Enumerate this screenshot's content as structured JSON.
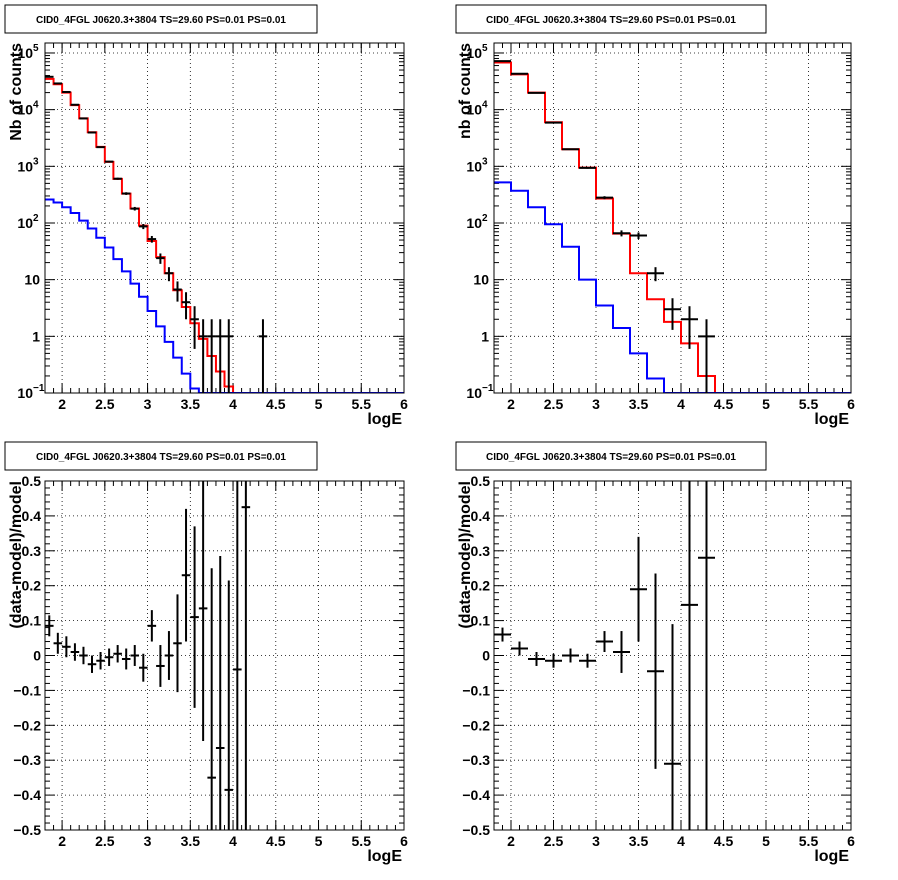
{
  "chart_data": [
    {
      "type": "line",
      "title": "CID0_4FGL J0620.3+3804 TS=29.60 PS=0.01 PS=0.01",
      "xlabel": "logE",
      "ylabel": "Nb of counts",
      "xlim": [
        1.8,
        6.0
      ],
      "ylim": [
        0.1,
        150000
      ],
      "yscale": "log",
      "grid": true,
      "xticks": [
        "2",
        "2.5",
        "3",
        "3.5",
        "4",
        "4.5",
        "5",
        "5.5",
        "6"
      ],
      "yticks": [
        {
          "value": 0.1,
          "label": "10",
          "exp": "−1"
        },
        {
          "value": 1,
          "label": "1",
          "exp": ""
        },
        {
          "value": 10,
          "label": "10",
          "exp": ""
        },
        {
          "value": 100,
          "label": "10",
          "exp": "2"
        },
        {
          "value": 1000,
          "label": "10",
          "exp": "3"
        },
        {
          "value": 10000,
          "label": "10",
          "exp": "4"
        },
        {
          "value": 100000,
          "label": "10",
          "exp": "5"
        }
      ],
      "bin_edges": [
        1.8,
        1.9,
        2.0,
        2.1,
        2.2,
        2.3,
        2.4,
        2.5,
        2.6,
        2.7,
        2.8,
        2.9,
        3.0,
        3.1,
        3.2,
        3.3,
        3.4,
        3.5,
        3.6,
        3.7,
        3.8,
        3.9,
        4.0,
        4.1,
        4.2,
        4.3,
        4.4,
        4.5,
        4.6,
        4.7,
        4.8,
        4.9,
        5.0,
        5.1,
        5.2,
        5.3,
        5.4,
        5.5,
        5.6,
        5.7,
        5.8,
        5.9,
        6.0
      ],
      "series": [
        {
          "color": "#ff0000",
          "values": [
            35000,
            28000,
            20000,
            12000,
            7000,
            4000,
            2200,
            1200,
            600,
            330,
            180,
            90,
            48,
            25,
            13,
            6.5,
            3.3,
            1.7,
            0.9,
            0.45,
            0.24,
            0.13,
            0.1,
            0.1,
            0.1,
            0.1,
            0.1,
            0.1,
            0.1,
            0.1,
            0.1,
            0.1,
            0.1,
            0.1,
            0.1,
            0.1,
            0.1,
            0.1,
            0.1,
            0.1,
            0.1,
            0.1
          ]
        },
        {
          "color": "#0000ff",
          "values": [
            260,
            230,
            190,
            150,
            110,
            80,
            55,
            37,
            23,
            14,
            8.5,
            5.0,
            2.8,
            1.5,
            0.8,
            0.42,
            0.22,
            0.12,
            0.1,
            0.1,
            0.1,
            0.1,
            0.1,
            0.1,
            0.1,
            0.1,
            0.1,
            0.1,
            0.1,
            0.1,
            0.1,
            0.1,
            0.1,
            0.1,
            0.1,
            0.1,
            0.1,
            0.1,
            0.1,
            0.1,
            0.1,
            0.1
          ]
        }
      ],
      "points": [
        {
          "x": 1.85,
          "y": 38000,
          "lo": 37800,
          "hi": 38200
        },
        {
          "x": 1.95,
          "y": 29000,
          "lo": 28830,
          "hi": 29170
        },
        {
          "x": 2.05,
          "y": 20500,
          "lo": 20360,
          "hi": 20640
        },
        {
          "x": 2.15,
          "y": 12200,
          "lo": 12090,
          "hi": 12310
        },
        {
          "x": 2.25,
          "y": 7000,
          "lo": 6916,
          "hi": 7084
        },
        {
          "x": 2.35,
          "y": 3950,
          "lo": 3887,
          "hi": 4013
        },
        {
          "x": 2.45,
          "y": 2180,
          "lo": 2133,
          "hi": 2227
        },
        {
          "x": 2.55,
          "y": 1210,
          "lo": 1175,
          "hi": 1245
        },
        {
          "x": 2.65,
          "y": 604,
          "lo": 579,
          "hi": 629
        },
        {
          "x": 2.75,
          "y": 331,
          "lo": 313,
          "hi": 349
        },
        {
          "x": 2.85,
          "y": 179,
          "lo": 166,
          "hi": 192
        },
        {
          "x": 2.95,
          "y": 87,
          "lo": 78,
          "hi": 96
        },
        {
          "x": 3.05,
          "y": 52,
          "lo": 45,
          "hi": 59
        },
        {
          "x": 3.15,
          "y": 24,
          "lo": 19,
          "hi": 29
        },
        {
          "x": 3.25,
          "y": 13,
          "lo": 9.4,
          "hi": 16.6
        },
        {
          "x": 3.35,
          "y": 6.7,
          "lo": 4.1,
          "hi": 9.3
        },
        {
          "x": 3.45,
          "y": 4,
          "lo": 2,
          "hi": 6
        },
        {
          "x": 3.55,
          "y": 2,
          "lo": 0.6,
          "hi": 3.4
        },
        {
          "x": 3.65,
          "y": 1,
          "lo": 0.1,
          "hi": 2
        },
        {
          "x": 3.75,
          "y": 1,
          "lo": 0.1,
          "hi": 2
        },
        {
          "x": 3.85,
          "y": 1,
          "lo": 0.1,
          "hi": 2
        },
        {
          "x": 3.95,
          "y": 1,
          "lo": 0.1,
          "hi": 2
        },
        {
          "x": 4.35,
          "y": 1,
          "lo": 0.1,
          "hi": 2
        }
      ]
    },
    {
      "type": "line",
      "title": "CID0_4FGL J0620.3+3804 TS=29.60 PS=0.01 PS=0.01",
      "xlabel": "logE",
      "ylabel": "nb of counts",
      "xlim": [
        1.8,
        6.0
      ],
      "ylim": [
        0.1,
        150000
      ],
      "yscale": "log",
      "grid": true,
      "xticks": [
        "2",
        "2.5",
        "3",
        "3.5",
        "4",
        "4.5",
        "5",
        "5.5",
        "6"
      ],
      "yticks": [
        {
          "value": 0.1,
          "label": "10",
          "exp": "−1"
        },
        {
          "value": 1,
          "label": "1",
          "exp": ""
        },
        {
          "value": 10,
          "label": "10",
          "exp": ""
        },
        {
          "value": 100,
          "label": "10",
          "exp": "2"
        },
        {
          "value": 1000,
          "label": "10",
          "exp": "3"
        },
        {
          "value": 10000,
          "label": "10",
          "exp": "4"
        },
        {
          "value": 100000,
          "label": "10",
          "exp": "5"
        }
      ],
      "bin_edges": [
        1.8,
        2.0,
        2.2,
        2.4,
        2.6,
        2.8,
        3.0,
        3.2,
        3.4,
        3.6,
        3.8,
        4.0,
        4.2,
        4.4,
        4.6,
        4.8,
        5.0,
        5.2,
        5.4,
        5.6,
        5.8,
        6.0
      ],
      "series": [
        {
          "color": "#ff0000",
          "values": [
            68000,
            42000,
            20000,
            6000,
            2000,
            950,
            270,
            65,
            13,
            4.5,
            1.8,
            0.75,
            0.2,
            0.1,
            0.1,
            0.1,
            0.1,
            0.1,
            0.1,
            0.1,
            0.1
          ]
        },
        {
          "color": "#0000ff",
          "values": [
            520,
            370,
            190,
            95,
            38,
            10,
            3.5,
            1.4,
            0.5,
            0.18,
            0.1,
            0.1,
            0.1,
            0.1,
            0.1,
            0.1,
            0.1,
            0.1,
            0.1,
            0.1,
            0.1
          ]
        }
      ],
      "points": [
        {
          "x": 1.9,
          "y": 72000,
          "lo": 71700,
          "hi": 72300
        },
        {
          "x": 2.1,
          "y": 43000,
          "lo": 42790,
          "hi": 43210
        },
        {
          "x": 2.3,
          "y": 19800,
          "lo": 19660,
          "hi": 19940
        },
        {
          "x": 2.5,
          "y": 5900,
          "lo": 5823,
          "hi": 5977
        },
        {
          "x": 2.7,
          "y": 2000,
          "lo": 1955,
          "hi": 2045
        },
        {
          "x": 2.9,
          "y": 940,
          "lo": 909,
          "hi": 971
        },
        {
          "x": 3.1,
          "y": 280,
          "lo": 263,
          "hi": 297
        },
        {
          "x": 3.3,
          "y": 66,
          "lo": 58,
          "hi": 74
        },
        {
          "x": 3.5,
          "y": 60,
          "lo": 52,
          "hi": 68
        },
        {
          "x": 3.7,
          "y": 13,
          "lo": 9.4,
          "hi": 16.6
        },
        {
          "x": 3.9,
          "y": 3,
          "lo": 1.3,
          "hi": 4.7
        },
        {
          "x": 4.1,
          "y": 2,
          "lo": 0.6,
          "hi": 3.4
        },
        {
          "x": 4.3,
          "y": 1,
          "lo": 0.1,
          "hi": 2
        }
      ]
    },
    {
      "type": "scatter",
      "title": "CID0_4FGL J0620.3+3804 TS=29.60 PS=0.01 PS=0.01",
      "xlabel": "logE",
      "ylabel": "(data-model)/model",
      "xlim": [
        1.8,
        6.0
      ],
      "ylim": [
        -0.5,
        0.5
      ],
      "grid": true,
      "xticks": [
        "2",
        "2.5",
        "3",
        "3.5",
        "4",
        "4.5",
        "5",
        "5.5",
        "6"
      ],
      "yticks": [
        "−0.5",
        "−0.4",
        "−0.3",
        "−0.2",
        "−0.1",
        "0",
        "0.1",
        "0.2",
        "0.3",
        "0.4",
        "0.5"
      ],
      "half_width": 0.05,
      "points": [
        {
          "x": 1.85,
          "y": 0.085,
          "err": 0.03
        },
        {
          "x": 1.95,
          "y": 0.035,
          "err": 0.03
        },
        {
          "x": 2.05,
          "y": 0.025,
          "err": 0.03
        },
        {
          "x": 2.15,
          "y": 0.01,
          "err": 0.025
        },
        {
          "x": 2.25,
          "y": 0.0,
          "err": 0.025
        },
        {
          "x": 2.35,
          "y": -0.025,
          "err": 0.025
        },
        {
          "x": 2.45,
          "y": -0.015,
          "err": 0.025
        },
        {
          "x": 2.55,
          "y": -0.005,
          "err": 0.025
        },
        {
          "x": 2.65,
          "y": 0.005,
          "err": 0.025
        },
        {
          "x": 2.75,
          "y": -0.01,
          "err": 0.03
        },
        {
          "x": 2.85,
          "y": 0.0,
          "err": 0.03
        },
        {
          "x": 2.95,
          "y": -0.035,
          "err": 0.04
        },
        {
          "x": 3.05,
          "y": 0.085,
          "err": 0.045
        },
        {
          "x": 3.15,
          "y": -0.03,
          "err": 0.06
        },
        {
          "x": 3.25,
          "y": 0.0,
          "err": 0.07
        },
        {
          "x": 3.35,
          "y": 0.035,
          "err": 0.14
        },
        {
          "x": 3.45,
          "y": 0.23,
          "err": 0.19
        },
        {
          "x": 3.55,
          "y": 0.11,
          "err": 0.26
        },
        {
          "x": 3.65,
          "y": 0.135,
          "err": 0.38
        },
        {
          "x": 3.75,
          "y": -0.35,
          "err": 0.6
        },
        {
          "x": 3.85,
          "y": -0.265,
          "err": 0.55
        },
        {
          "x": 3.95,
          "y": -0.385,
          "err": 0.6
        },
        {
          "x": 4.05,
          "y": -0.04,
          "err": 0.95
        },
        {
          "x": 4.15,
          "y": 0.425,
          "err": 1.3
        }
      ]
    },
    {
      "type": "scatter",
      "title": "CID0_4FGL J0620.3+3804 TS=29.60 PS=0.01 PS=0.01",
      "xlabel": "logE",
      "ylabel": "(data-model)/model",
      "xlim": [
        1.8,
        6.0
      ],
      "ylim": [
        -0.5,
        0.5
      ],
      "grid": true,
      "xticks": [
        "2",
        "2.5",
        "3",
        "3.5",
        "4",
        "4.5",
        "5",
        "5.5",
        "6"
      ],
      "yticks": [
        "−0.5",
        "−0.4",
        "−0.3",
        "−0.2",
        "−0.1",
        "0",
        "0.1",
        "0.2",
        "0.3",
        "0.4",
        "0.5"
      ],
      "half_width": 0.1,
      "points": [
        {
          "x": 1.9,
          "y": 0.06,
          "err": 0.02
        },
        {
          "x": 2.1,
          "y": 0.02,
          "err": 0.02
        },
        {
          "x": 2.3,
          "y": -0.01,
          "err": 0.02
        },
        {
          "x": 2.5,
          "y": -0.015,
          "err": 0.02
        },
        {
          "x": 2.7,
          "y": 0.0,
          "err": 0.02
        },
        {
          "x": 2.9,
          "y": -0.015,
          "err": 0.02
        },
        {
          "x": 3.1,
          "y": 0.04,
          "err": 0.03
        },
        {
          "x": 3.3,
          "y": 0.01,
          "err": 0.06
        },
        {
          "x": 3.5,
          "y": 0.19,
          "err": 0.15
        },
        {
          "x": 3.7,
          "y": -0.045,
          "err": 0.28
        },
        {
          "x": 3.9,
          "y": -0.31,
          "err": 0.4
        },
        {
          "x": 4.1,
          "y": 0.145,
          "err": 0.9
        },
        {
          "x": 4.3,
          "y": 0.28,
          "err": 0.95
        }
      ]
    }
  ]
}
